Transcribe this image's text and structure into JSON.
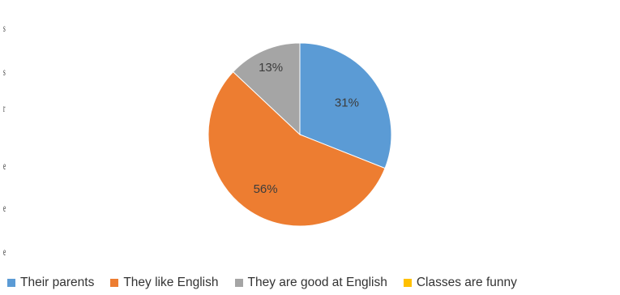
{
  "chart_data": {
    "type": "pie",
    "title": "",
    "slices": [
      {
        "label": "Their parents",
        "value": 31,
        "display": "31%",
        "color": "#5b9bd5"
      },
      {
        "label": "They like English",
        "value": 56,
        "display": "56%",
        "color": "#ed7d31"
      },
      {
        "label": "They are good at English",
        "value": 13,
        "display": "13%",
        "color": "#a5a5a5"
      },
      {
        "label": "Classes are funny",
        "value": 0,
        "display": "",
        "color": "#ffc000"
      }
    ],
    "legend_position": "bottom",
    "start_angle": "12 o'clock, clockwise"
  },
  "edge_text": [
    "s",
    "s",
    "r",
    "e",
    "e",
    "e"
  ]
}
